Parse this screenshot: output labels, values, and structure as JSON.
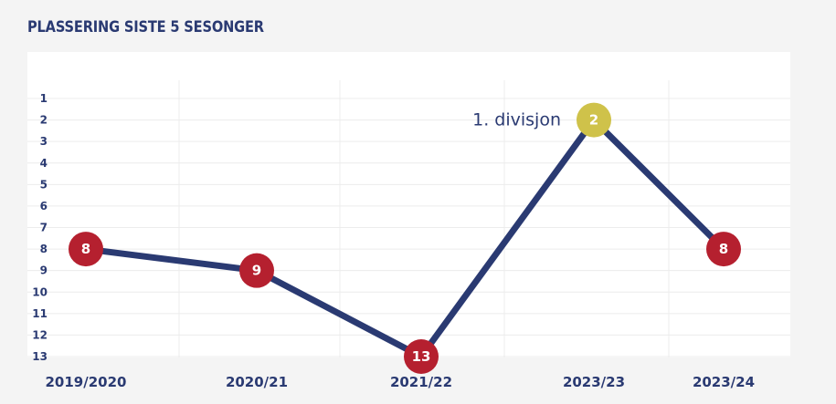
{
  "header": {
    "title": "PLASSERING SISTE 5 SESONGER"
  },
  "chart_data": {
    "type": "line",
    "title": "PLASSERING SISTE 5 SESONGER",
    "categories": [
      "2019/2020",
      "2020/21",
      "2021/22",
      "2023/23",
      "2023/24"
    ],
    "series": [
      {
        "values": [
          8,
          9,
          13,
          2,
          8
        ]
      }
    ],
    "y_ticks": [
      1,
      2,
      3,
      4,
      5,
      6,
      7,
      8,
      9,
      10,
      11,
      12,
      13
    ],
    "ylim": [
      1,
      13
    ],
    "y_inverted": true,
    "grid": true,
    "annotations": [
      {
        "text": "1. divisjon",
        "category": "2023/23",
        "value": 2
      }
    ],
    "colors": {
      "line": "#2a3a72",
      "marker_default": "#b5202f",
      "marker_highlight": "#cfc24a",
      "grid": "#ececec"
    },
    "highlight_index": 3
  }
}
